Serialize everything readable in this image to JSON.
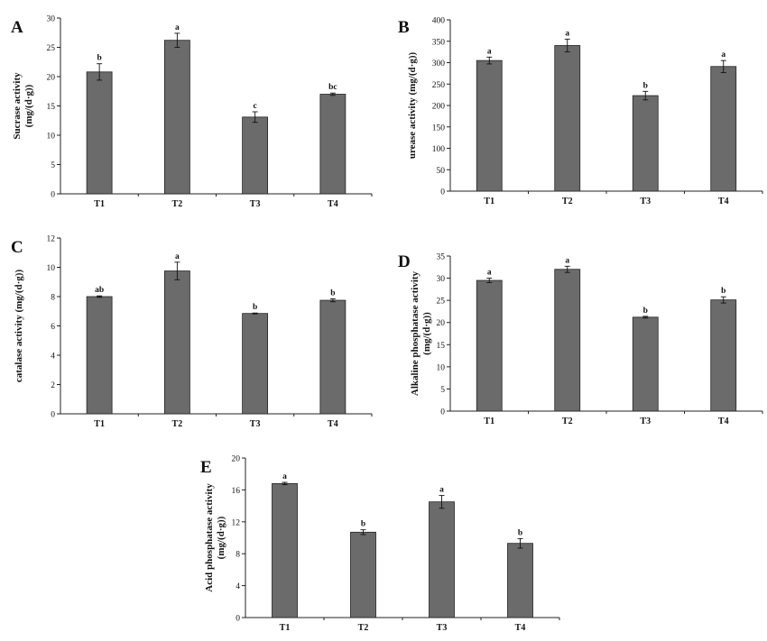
{
  "chart_data": [
    {
      "panel": "A",
      "type": "bar",
      "categories": [
        "T1",
        "T2",
        "T3",
        "T4"
      ],
      "values": [
        20.8,
        26.2,
        13.1,
        17.0
      ],
      "errors": [
        1.4,
        1.2,
        0.9,
        0.2
      ],
      "letters": [
        "b",
        "a",
        "c",
        "bc"
      ],
      "ylabel_lines": [
        "Sucrase activity",
        "(mg/(d·g))"
      ],
      "yticks": [
        "0",
        "5",
        "10",
        "15",
        "20",
        "25",
        "30"
      ],
      "ylim": [
        0,
        30
      ],
      "grid": false,
      "color": "#6b6b6b"
    },
    {
      "panel": "B",
      "type": "bar",
      "categories": [
        "T1",
        "T2",
        "T3",
        "T4"
      ],
      "values": [
        305,
        340,
        223,
        291
      ],
      "errors": [
        8,
        15,
        10,
        14
      ],
      "letters": [
        "a",
        "a",
        "b",
        "a"
      ],
      "ylabel_lines": [
        "urease activity (mg/(d·g))"
      ],
      "yticks": [
        "0",
        "50",
        "100",
        "150",
        "200",
        "250",
        "300",
        "350",
        "400"
      ],
      "ylim": [
        0,
        400
      ],
      "grid": false,
      "color": "#6b6b6b"
    },
    {
      "panel": "C",
      "type": "bar",
      "categories": [
        "T1",
        "T2",
        "T3",
        "T4"
      ],
      "values": [
        8.0,
        9.75,
        6.85,
        7.75
      ],
      "errors": [
        0.05,
        0.6,
        0.03,
        0.1
      ],
      "letters": [
        "ab",
        "a",
        "b",
        "b"
      ],
      "ylabel_lines": [
        "catalase activity (mg/(d·g))"
      ],
      "yticks": [
        "0",
        "2",
        "4",
        "6",
        "8",
        "10",
        "12"
      ],
      "ylim": [
        0,
        12
      ],
      "grid": false,
      "color": "#6b6b6b"
    },
    {
      "panel": "D",
      "type": "bar",
      "categories": [
        "T1",
        "T2",
        "T3",
        "T4"
      ],
      "values": [
        29.5,
        32.0,
        21.2,
        25.1
      ],
      "errors": [
        0.5,
        0.7,
        0.2,
        0.7
      ],
      "letters": [
        "a",
        "a",
        "b",
        "b"
      ],
      "ylabel_lines": [
        "Alkaline phosphatase activity",
        "(mg/(d·g))"
      ],
      "yticks": [
        "0",
        "5",
        "10",
        "15",
        "20",
        "25",
        "30",
        "35"
      ],
      "ylim": [
        0,
        35
      ],
      "grid": false,
      "color": "#6b6b6b"
    },
    {
      "panel": "E",
      "type": "bar",
      "categories": [
        "T1",
        "T2",
        "T3",
        "T4"
      ],
      "values": [
        16.8,
        10.7,
        14.5,
        9.3
      ],
      "errors": [
        0.15,
        0.3,
        0.8,
        0.6
      ],
      "letters": [
        "a",
        "b",
        "a",
        "b"
      ],
      "ylabel_lines": [
        "Acid phosphatase activity",
        "(mg/(d·g))"
      ],
      "yticks": [
        "0",
        "4",
        "8",
        "12",
        "16",
        "20"
      ],
      "ylim": [
        0,
        20
      ],
      "grid": false,
      "color": "#6b6b6b"
    }
  ]
}
